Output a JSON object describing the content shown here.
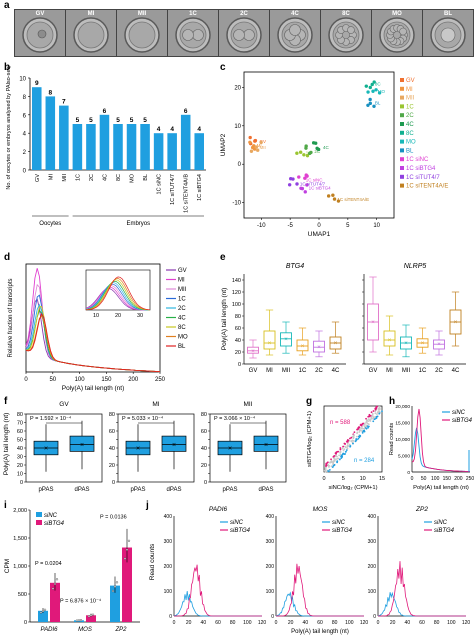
{
  "panel_labels": {
    "a": "a",
    "b": "b",
    "c": "c",
    "d": "d",
    "e": "e",
    "f": "f",
    "g": "g",
    "h": "h",
    "i": "i",
    "j": "j"
  },
  "panel_a": {
    "stages": [
      "GV",
      "MI",
      "MII",
      "1C",
      "2C",
      "4C",
      "8C",
      "MO",
      "BL"
    ]
  },
  "colors": {
    "blue": "#1f9fe0",
    "pink": "#e0197a",
    "grey": "#c8c8c8"
  },
  "chart_data": [
    {
      "panel": "b",
      "type": "bar",
      "ylabel": "No. of oocytes or embryos analysed by PAlso-seq",
      "categories": [
        "GV",
        "MI",
        "MII",
        "1C",
        "2C",
        "4C",
        "8C",
        "MO",
        "BL",
        "1C siNC",
        "1C siTUT4/7",
        "1C siTENT4A/B",
        "1C siBTG4"
      ],
      "values": [
        9,
        8,
        7,
        5,
        5,
        6,
        5,
        5,
        5,
        4,
        4,
        6,
        4
      ],
      "value_labels": [
        "9",
        "8",
        "7",
        "5",
        "5",
        "6",
        "5",
        "5",
        "5",
        "4",
        "4",
        "6",
        "4"
      ],
      "groups": [
        {
          "label": "Oocytes"
        },
        {
          "label": "Embryos"
        }
      ],
      "yticks": [
        "0",
        "2",
        "4",
        "6",
        "8",
        "10"
      ],
      "ylim": [
        0,
        10
      ]
    },
    {
      "panel": "c",
      "type": "scatter",
      "xlabel": "UMAP1",
      "ylabel": "UMAP2",
      "xticks": [
        "-10",
        "-5",
        "0",
        "5",
        "10"
      ],
      "yticks": [
        "-10",
        "0",
        "10",
        "20"
      ],
      "legend": [
        "GV",
        "MI",
        "MII",
        "1C",
        "2C",
        "4C",
        "8C",
        "MO",
        "BL",
        "1C siNC",
        "1C siBTG4",
        "1C siTUT4/7",
        "1C siTENT4A/E"
      ],
      "legend_colors": [
        "#f07030",
        "#f09540",
        "#e8a860",
        "#9ac530",
        "#50a848",
        "#1e9a50",
        "#10b090",
        "#18b8b8",
        "#1890c0",
        "#e040d0",
        "#c040e0",
        "#9040e0",
        "#c08020"
      ],
      "point_labels": [
        "GV",
        "MI",
        "MII",
        "1C",
        "2C",
        "4C",
        "8C",
        "MO",
        "BL",
        "1C siNC",
        "1C siBTG4",
        "1C siTUT4/7",
        "1C siTENT4A/E"
      ]
    },
    {
      "panel": "d",
      "type": "line",
      "xlabel": "Poly(A) tail length (nt)",
      "ylabel": "Relative fraction of transcripts",
      "xticks": [
        "0",
        "50",
        "100",
        "150",
        "200",
        "250"
      ],
      "inset_xticks": [
        "10",
        "20",
        "30"
      ],
      "series": [
        {
          "name": "GV"
        },
        {
          "name": "MI"
        },
        {
          "name": "MII"
        },
        {
          "name": "1C"
        },
        {
          "name": "2C"
        },
        {
          "name": "4C"
        },
        {
          "name": "8C"
        },
        {
          "name": "MO"
        },
        {
          "name": "BL"
        }
      ],
      "colors": [
        "#8a3ab0",
        "#e040d0",
        "#e08ad8",
        "#2a6ad8",
        "#30b8e0",
        "#28b048",
        "#c8c820",
        "#e08020",
        "#e02020"
      ]
    },
    {
      "panel": "e",
      "type": "box",
      "ylabel": "Poly(A) tail length (nt)",
      "genes": [
        "BTG4",
        "NLRP5"
      ],
      "categories": [
        "GV",
        "MI",
        "MII",
        "1C",
        "2C",
        "4C"
      ],
      "yticks": [
        "0",
        "20",
        "40",
        "60",
        "80",
        "100",
        "120",
        "140"
      ]
    },
    {
      "panel": "f",
      "type": "box",
      "ylabel": "Poly(A) tail length (nt)",
      "categories": [
        "pPAS",
        "dPAS"
      ],
      "groups": [
        {
          "name": "GV",
          "p": "P = 1.592 × 10⁻⁴"
        },
        {
          "name": "MI",
          "p": "P = 5.033 × 10⁻⁴"
        },
        {
          "name": "MII",
          "p": "P = 3.066 × 10⁻⁴"
        }
      ],
      "yticks": [
        "0",
        "10",
        "20",
        "30",
        "40",
        "50",
        "60",
        "70",
        "80"
      ]
    },
    {
      "panel": "g",
      "type": "scatter",
      "xlabel": "siNC/log₂ (CPM+1)",
      "ylabel": "siBTG4/log₂ (CPM+1)",
      "annotations": [
        "n = 588",
        "n = 284"
      ],
      "xticks": [
        "0",
        "5",
        "10",
        "15"
      ],
      "yticks": [
        "0",
        "5",
        "10",
        "15"
      ]
    },
    {
      "panel": "h",
      "type": "line",
      "xlabel": "Poly(A) tail length (nt)",
      "ylabel": "Read counts",
      "series": [
        {
          "name": "siNC"
        },
        {
          "name": "siBTG4"
        }
      ],
      "xticks": [
        "0",
        "50",
        "100",
        "150",
        "200",
        "250"
      ],
      "yticks": [
        "0",
        "5,000",
        "10,000",
        "15,000",
        "20,000"
      ]
    },
    {
      "panel": "i",
      "type": "bar",
      "ylabel": "CPM",
      "categories": [
        "PADI6",
        "MOS",
        "ZP2"
      ],
      "series": [
        {
          "name": "siNC",
          "values": [
            200,
            30,
            650
          ]
        },
        {
          "name": "siBTG4",
          "values": [
            700,
            120,
            1330
          ]
        }
      ],
      "pvalues": [
        "P = 0.0204",
        "P = 6.876 × 10⁻⁴",
        "P = 0.0136"
      ],
      "yticks": [
        "0",
        "500",
        "1,000",
        "1,500",
        "2,000"
      ],
      "ylim": [
        0,
        2000
      ]
    },
    {
      "panel": "j",
      "type": "line",
      "xlabel": "Poly(A) tail length (nt)",
      "ylabel": "Read counts",
      "genes": [
        "PADI6",
        "MOS",
        "ZP2"
      ],
      "series": [
        {
          "name": "siNC"
        },
        {
          "name": "siBTG4"
        }
      ],
      "xticks": [
        "0",
        "20",
        "40",
        "60",
        "80",
        "100",
        "120"
      ],
      "yticks": [
        "0",
        "100",
        "200",
        "300",
        "400"
      ]
    }
  ]
}
